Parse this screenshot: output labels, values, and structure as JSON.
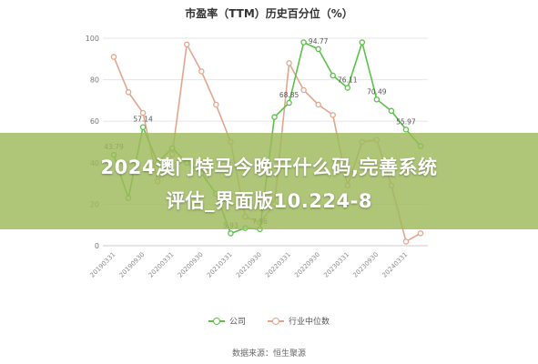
{
  "chart_data": {
    "type": "line",
    "title": "市盈率（TTM）历史百分位（%）",
    "x": [
      "20190331",
      "20190630",
      "20190930",
      "20191231",
      "20200331",
      "20200630",
      "20200930",
      "20201231",
      "20210331",
      "20210630",
      "20210930",
      "20211231",
      "20220331",
      "20220630",
      "20220930",
      "20221231",
      "20230331",
      "20230630",
      "20230930",
      "20231231",
      "20240331",
      "20240630"
    ],
    "x_tick_labels": [
      "20190331",
      "20190930",
      "20200331",
      "20200930",
      "20210331",
      "20210930",
      "20220331",
      "20220930",
      "20230331",
      "20230930",
      "20240331"
    ],
    "ylim": [
      0,
      100
    ],
    "y_ticks": [
      0,
      20,
      40,
      60,
      80,
      100
    ],
    "grid": true,
    "legend_position": "bottom-center",
    "series": [
      {
        "name": "公司",
        "color": "#5bbf4a",
        "values": [
          43.79,
          23,
          57.14,
          40,
          47,
          40,
          35,
          25,
          5.93,
          8.5,
          7.96,
          62,
          68.85,
          98,
          94.77,
          82,
          76.11,
          98,
          70.49,
          65,
          55.97,
          48
        ],
        "point_labels": {
          "0": "43.79",
          "2": "57.14",
          "8": "5.93",
          "10": "7.96",
          "12": "68.85",
          "14": "94.77",
          "16": "76.11",
          "18": "70.49",
          "20": "55.97"
        }
      },
      {
        "name": "行业中位数",
        "color": "#e3a58c",
        "values": [
          91,
          74,
          64,
          31,
          44,
          97,
          84,
          68,
          50,
          14,
          11,
          20,
          88,
          75,
          68,
          63,
          29,
          50,
          51,
          29,
          2,
          6
        ]
      }
    ]
  },
  "banner": {
    "line1": "2024澳门特马今晚开什么码,完善系统",
    "line2": "评估_界面版10.224-8"
  },
  "legend": [
    {
      "label": "公司",
      "color": "#5bbf4a"
    },
    {
      "label": "行业中位数",
      "color": "#e3a58c"
    }
  ],
  "source": "数据来源：恒生聚源"
}
